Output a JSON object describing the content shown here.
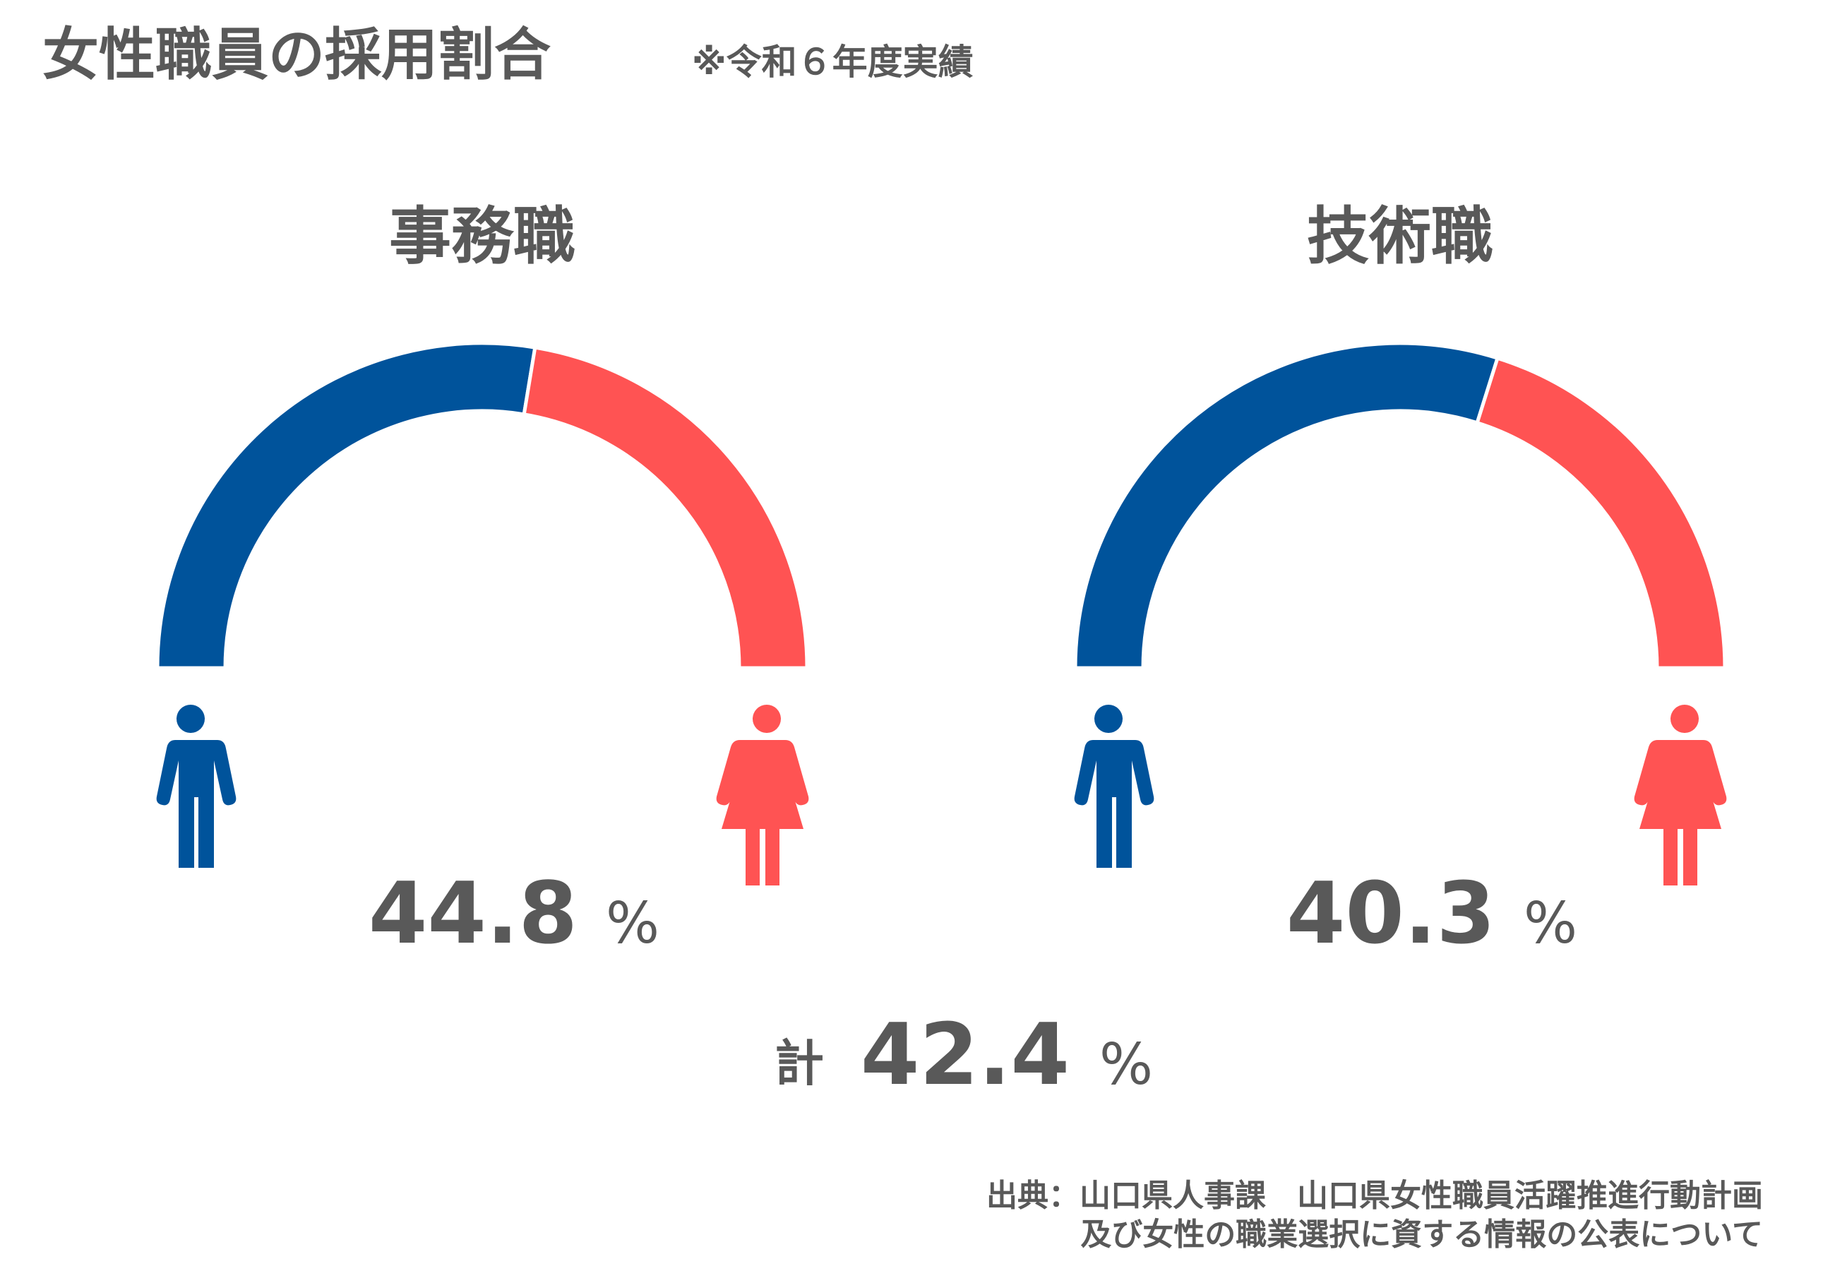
{
  "header": {
    "title": "女性職員の採用割合",
    "note": "※令和６年度実績"
  },
  "chart_data": [
    {
      "type": "half-donut",
      "title": "事務職",
      "values": [
        55.2,
        44.8
      ],
      "colors": [
        "#00539b",
        "#ff5353"
      ],
      "unit": "%"
    },
    {
      "type": "half-donut",
      "title": "技術職",
      "values": [
        59.7,
        40.3
      ],
      "colors": [
        "#00539b",
        "#ff5353"
      ],
      "unit": "%"
    }
  ],
  "total": {
    "label": "計",
    "value": 42.4,
    "unit": "%"
  },
  "source": [
    "出典：山口県人事課　山口県女性職員活躍推進行動計画",
    "及び女性の職業選択に資する情報の公表について"
  ]
}
